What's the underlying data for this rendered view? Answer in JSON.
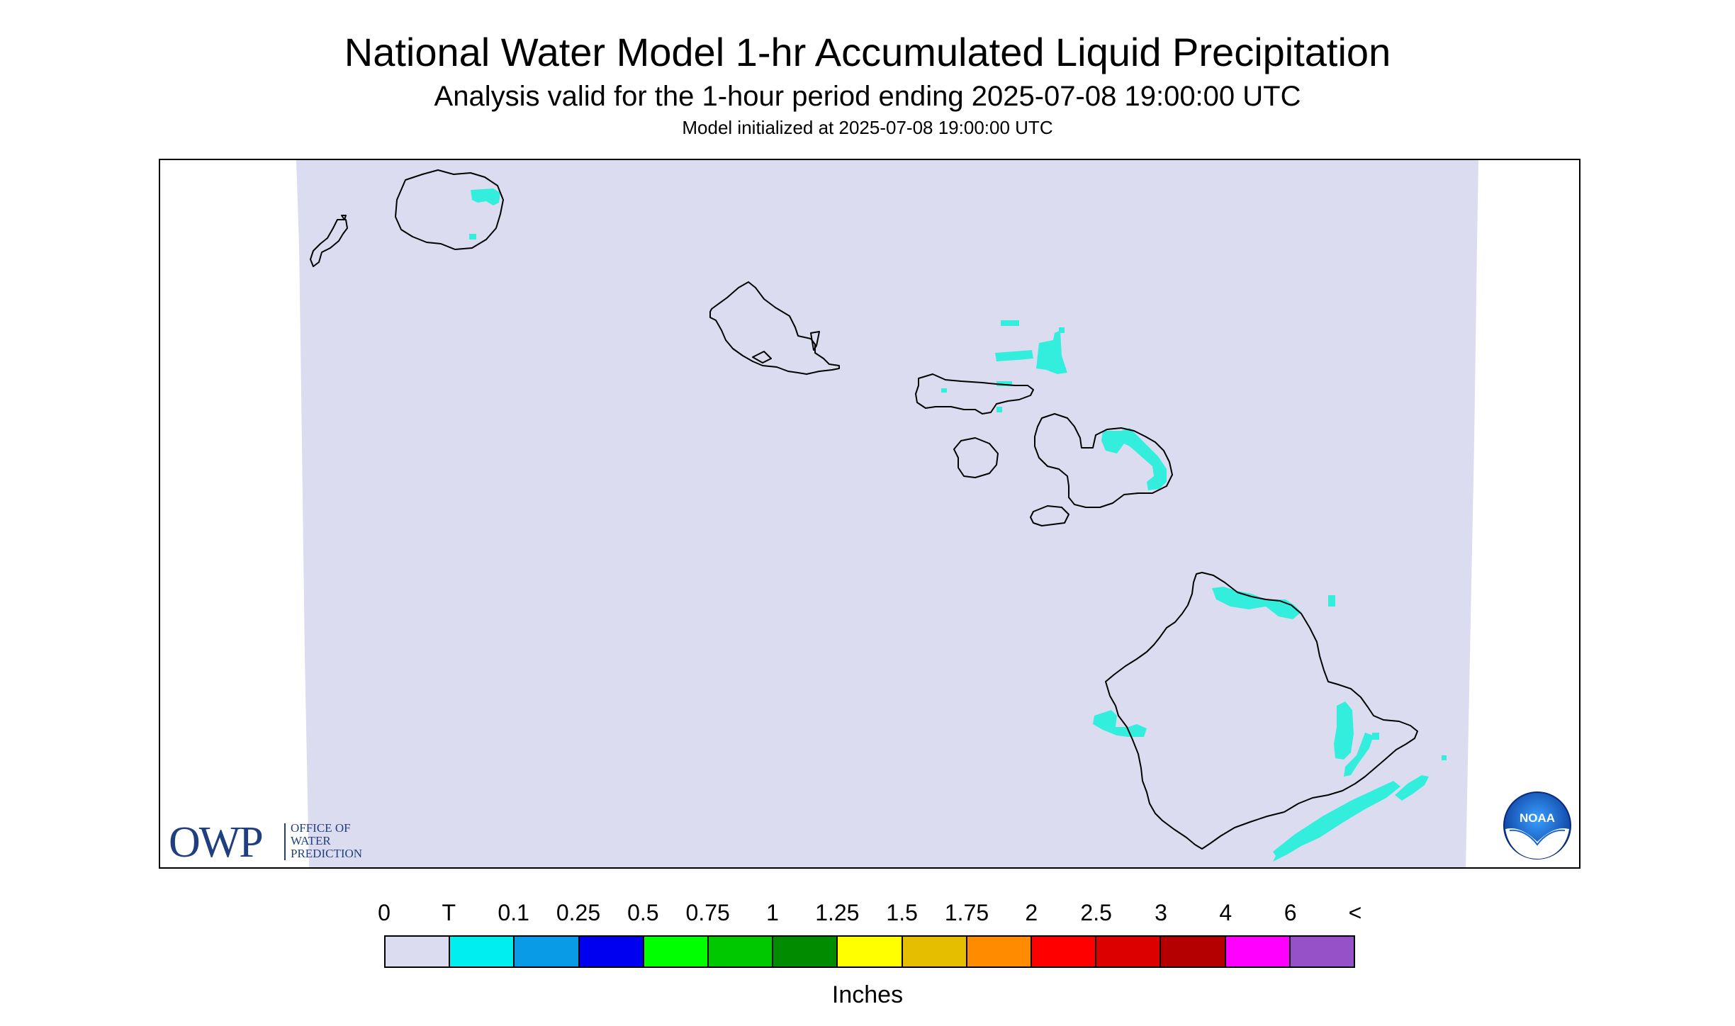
{
  "title": "National Water Model 1-hr Accumulated Liquid Precipitation",
  "subtitle": "Analysis valid for the 1-hour period ending 2025-07-08 19:00:00 UTC",
  "model_init": "Model initialized at 2025-07-08 19:00:00 UTC",
  "logos": {
    "owp_big": "OWP",
    "owp_line1": "OFFICE OF",
    "owp_line2": "WATER",
    "owp_line3": "PREDICTION",
    "noaa": "NOAA"
  },
  "legend": {
    "units": "Inches",
    "ticks": [
      "0",
      "T",
      "0.1",
      "0.25",
      "0.5",
      "0.75",
      "1",
      "1.25",
      "1.5",
      "1.75",
      "2",
      "2.5",
      "3",
      "4",
      "6",
      "<"
    ],
    "colors": [
      "#dcdcf0",
      "#00eeee",
      "#0a9be6",
      "#0000f0",
      "#00ff00",
      "#00c800",
      "#008c00",
      "#ffff00",
      "#e6be00",
      "#ff8c00",
      "#ff0000",
      "#dc0000",
      "#b40000",
      "#ff00ff",
      "#9650c8"
    ]
  },
  "map": {
    "domain_fill": "#dcdcf0",
    "trace_color": "#33eedd",
    "coast_color": "#000000",
    "islands": [
      "Niihau",
      "Kauai",
      "Oahu",
      "Molokai",
      "Lanai",
      "Maui",
      "Kahoolawe",
      "Hawaii"
    ]
  }
}
